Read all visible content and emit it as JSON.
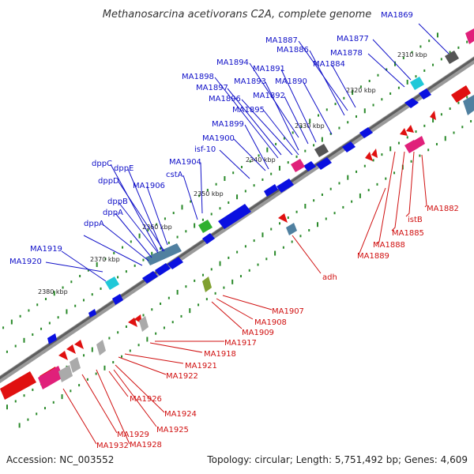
{
  "title": "Methanosarcina acetivorans C2A, complete genome",
  "accession": "Accession: NC_003552",
  "topology": "Topology: circular; Length: 5,751,492 bp; Genes: 4,609",
  "colors": {
    "forward": "#0a10e0",
    "reverse": "#e01010",
    "backbone": "#7a7a7a",
    "tick": "#2a8a2a",
    "forward_label": "#1010c8",
    "reverse_label": "#d01010"
  },
  "tick_labels": [
    "2310 kbp",
    "2320 kbp",
    "2330 kbp",
    "2340 kbp",
    "2350 kbp",
    "2360 kbp",
    "2370 kbp",
    "2380 kbp"
  ],
  "forward_labels": [
    "MA1869",
    "MA1877",
    "MA1878",
    "MA1887",
    "MA1886",
    "MA1884",
    "MA1894",
    "MA1891",
    "MA1890",
    "MA1898",
    "MA1893",
    "MA1897",
    "MA1896",
    "MA1892",
    "MA1895",
    "MA1899",
    "MA1900",
    "isf-10",
    "MA1904",
    "cstA",
    "dppC",
    "dppE",
    "dppD",
    "MA1906",
    "dppB",
    "dppA",
    "dppA",
    "MA1919",
    "MA1920"
  ],
  "reverse_labels": [
    "MA1882",
    "istB",
    "MA1885",
    "MA1888",
    "MA1889",
    "adh",
    "MA1907",
    "MA1908",
    "MA1909",
    "MA1917",
    "MA1918",
    "MA1921",
    "MA1922",
    "MA1926",
    "MA1924",
    "MA1925",
    "MA1929",
    "MA1928",
    "MA1932"
  ]
}
